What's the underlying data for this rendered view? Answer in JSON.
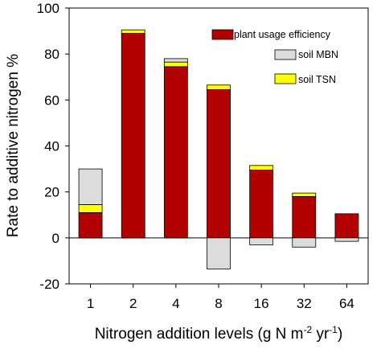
{
  "chart_data": {
    "type": "bar",
    "stacked": true,
    "categories": [
      "1",
      "2",
      "4",
      "8",
      "16",
      "32",
      "64"
    ],
    "series": [
      {
        "name": "plant usage efficiency",
        "color": "#b30000",
        "values": [
          11,
          89,
          74.5,
          64.5,
          29.5,
          18,
          10.5
        ]
      },
      {
        "name": "soil MBN",
        "color": "#dcdcdc",
        "values": [
          15.5,
          0,
          1.5,
          -13.5,
          -3,
          -4,
          -1.5
        ]
      },
      {
        "name": "soil TSN",
        "color": "#ffff00",
        "values": [
          3.5,
          1.5,
          2,
          2,
          2,
          1.5,
          0
        ]
      }
    ],
    "stack_order_positive": [
      "plant usage efficiency",
      "soil TSN",
      "soil MBN"
    ],
    "ylabel": "Rate to additive nitrogen %",
    "xlabel": "Nitrogen addition levels",
    "xlabel_unit": {
      "open": "(g N m",
      "sup1": "-2",
      "mid": " yr",
      "sup2": "-1",
      "close": ")"
    },
    "ylim": [
      -20,
      100
    ],
    "yticks": [
      "-20",
      "0",
      "20",
      "40",
      "60",
      "80",
      "100"
    ],
    "zero_line": true,
    "legend_placement": "top-right"
  }
}
